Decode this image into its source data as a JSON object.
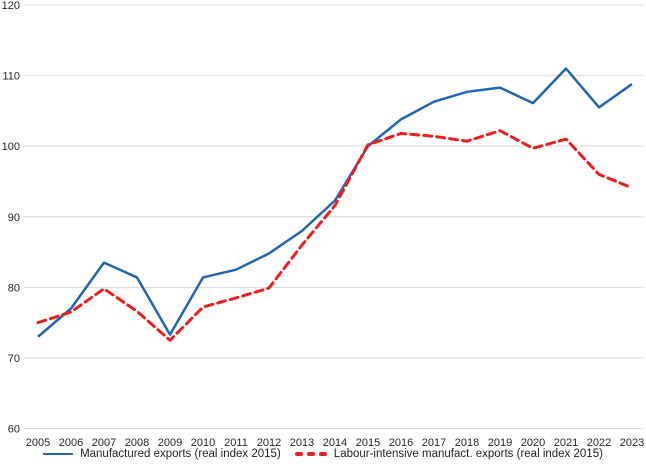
{
  "chart_data": {
    "type": "line",
    "title": "",
    "xlabel": "",
    "ylabel": "",
    "x": [
      2005,
      2006,
      2007,
      2008,
      2009,
      2010,
      2011,
      2012,
      2013,
      2014,
      2015,
      2016,
      2017,
      2018,
      2019,
      2020,
      2021,
      2022,
      2023
    ],
    "series": [
      {
        "name": "Manufactured exports (real index 2015)",
        "color": "#2066B2",
        "style": "solid",
        "values": [
          73.0,
          77.0,
          83.5,
          81.4,
          73.3,
          81.4,
          82.5,
          84.8,
          88.0,
          92.3,
          100.0,
          103.8,
          106.3,
          107.7,
          108.3,
          106.1,
          111.0,
          105.5,
          108.8
        ]
      },
      {
        "name": "Labour-intensive manufact. exports (real index 2015)",
        "color": "#ED1E1E",
        "style": "dashed",
        "values": [
          75.0,
          76.5,
          79.8,
          76.6,
          72.5,
          77.2,
          78.5,
          79.9,
          86.0,
          91.6,
          100.2,
          101.8,
          101.4,
          100.7,
          102.2,
          99.7,
          101.0,
          96.0,
          94.1
        ]
      }
    ],
    "ylim": [
      60,
      120
    ],
    "yticks": [
      60,
      70,
      80,
      90,
      100,
      110,
      120
    ],
    "grid": true,
    "legend_position": "bottom-center"
  },
  "colors": {
    "grid": "#D9D9D9",
    "axis_text": "#262626",
    "background": "#FFFFFF"
  }
}
